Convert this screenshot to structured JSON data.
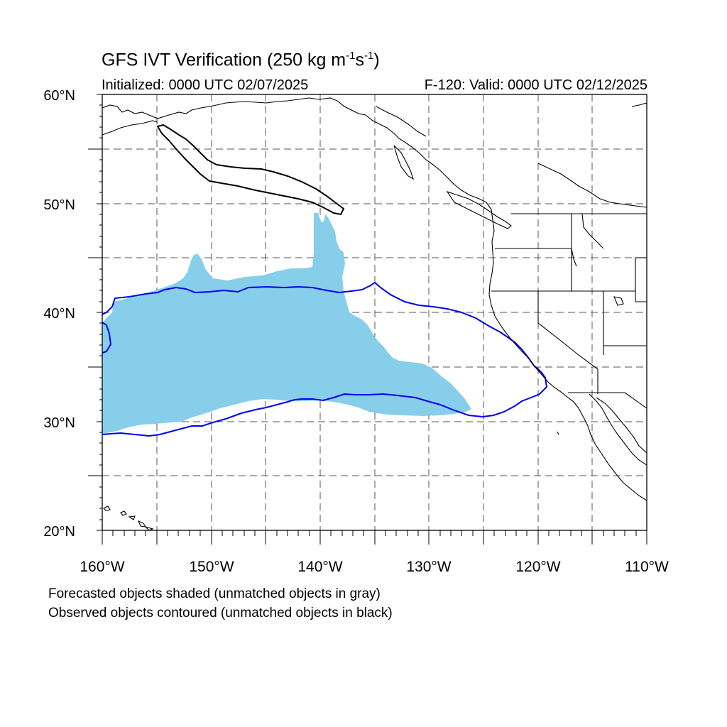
{
  "title": {
    "main": "GFS IVT Verification",
    "units_prefix": "(250 kg m",
    "units_exp1": "-1",
    "units_mid": "s",
    "units_exp2": "-1",
    "units_suffix": ")"
  },
  "subtitle": {
    "initialized": "Initialized: 0000 UTC 02/07/2025",
    "valid": "F-120: Valid: 0000 UTC 02/12/2025"
  },
  "footer": {
    "line1": "Forecasted objects shaded (unmatched objects in gray)",
    "line2": "Observed objects contoured (unmatched objects in black)"
  },
  "map": {
    "projection": "cylindrical equidistant",
    "lon_range": [
      -160,
      -110
    ],
    "lat_range": [
      20,
      60
    ],
    "grid": "dashed every 5 degrees",
    "lat_labels": [
      "60°N",
      "50°N",
      "40°N",
      "30°N",
      "20°N"
    ],
    "lon_labels": [
      "160°W",
      "150°W",
      "140°W",
      "130°W",
      "120°W",
      "110°W"
    ],
    "colors": {
      "forecast_matched_fill": "#87ceeb",
      "observed_matched_contour": "#0000ee",
      "observed_unmatched_contour": "#000000",
      "coastline": "#000000"
    }
  }
}
